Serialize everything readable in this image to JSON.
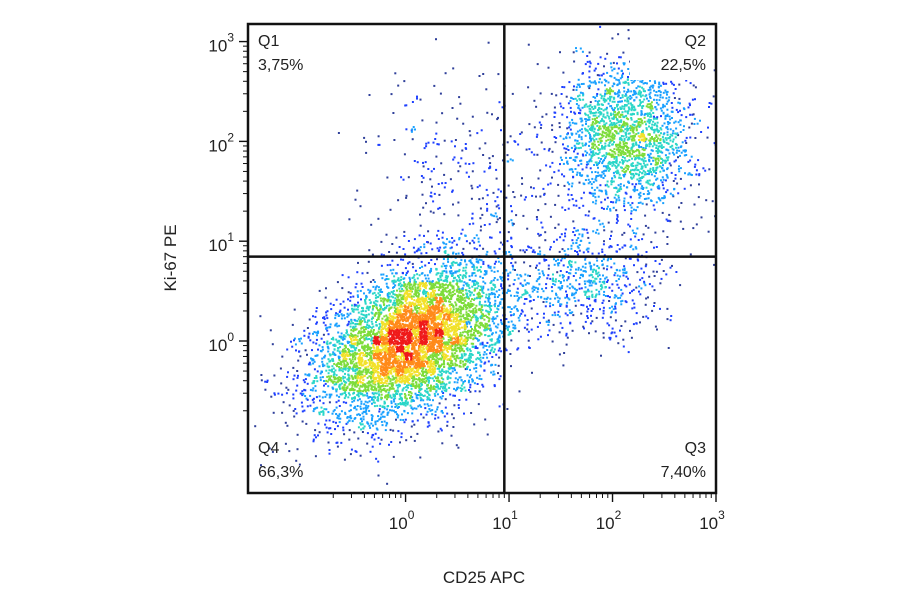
{
  "chart_data": {
    "type": "scatter",
    "subtype": "flow cytometry density dot plot, log-log, quadrant gates",
    "title": "",
    "xlabel": "CD25 APC",
    "ylabel": "Ki-67 PE",
    "x_scale": "log10",
    "y_scale": "log10",
    "xlim": [
      0.03,
      1000
    ],
    "ylim": [
      0.03,
      1500
    ],
    "x_ticks": [
      {
        "value": 1,
        "base": "10",
        "exp": "0"
      },
      {
        "value": 10,
        "base": "10",
        "exp": "1"
      },
      {
        "value": 100,
        "base": "10",
        "exp": "2"
      },
      {
        "value": 1000,
        "base": "10",
        "exp": "3"
      }
    ],
    "y_ticks": [
      {
        "value": 1,
        "base": "10",
        "exp": "0"
      },
      {
        "value": 10,
        "base": "10",
        "exp": "1"
      },
      {
        "value": 100,
        "base": "10",
        "exp": "2"
      },
      {
        "value": 1000,
        "base": "10",
        "exp": "3"
      }
    ],
    "gate": {
      "x": 9,
      "y": 7
    },
    "quadrants": [
      {
        "name": "Q1",
        "percent": "3,75%",
        "position": "top-left"
      },
      {
        "name": "Q2",
        "percent": "22,5%",
        "position": "top-right"
      },
      {
        "name": "Q3",
        "percent": "7,40%",
        "position": "bottom-right"
      },
      {
        "name": "Q4",
        "percent": "66,3%",
        "position": "bottom-left"
      }
    ],
    "populations": [
      {
        "name_hint": "main cluster",
        "center_log10": [
          0.05,
          0.0
        ],
        "spread_log10": [
          0.45,
          0.35
        ],
        "weight": 0.66
      },
      {
        "name_hint": "upper right cluster",
        "center_log10": [
          2.15,
          2.05
        ],
        "spread_log10": [
          0.32,
          0.38
        ],
        "weight": 0.22
      },
      {
        "name_hint": "lower right band",
        "center_log10": [
          1.75,
          0.55
        ],
        "spread_log10": [
          0.4,
          0.28
        ],
        "weight": 0.07
      },
      {
        "name_hint": "sparse upper left",
        "center_log10": [
          0.6,
          1.6
        ],
        "spread_log10": [
          0.5,
          0.6
        ],
        "weight": 0.04
      }
    ],
    "density_colormap": [
      "#2f3f9a",
      "#1e40ff",
      "#18a0ff",
      "#2ad6c8",
      "#7ddc3a",
      "#f2e12a",
      "#ff8a1a",
      "#ef1a1a"
    ],
    "grid": false,
    "legend": "none"
  }
}
